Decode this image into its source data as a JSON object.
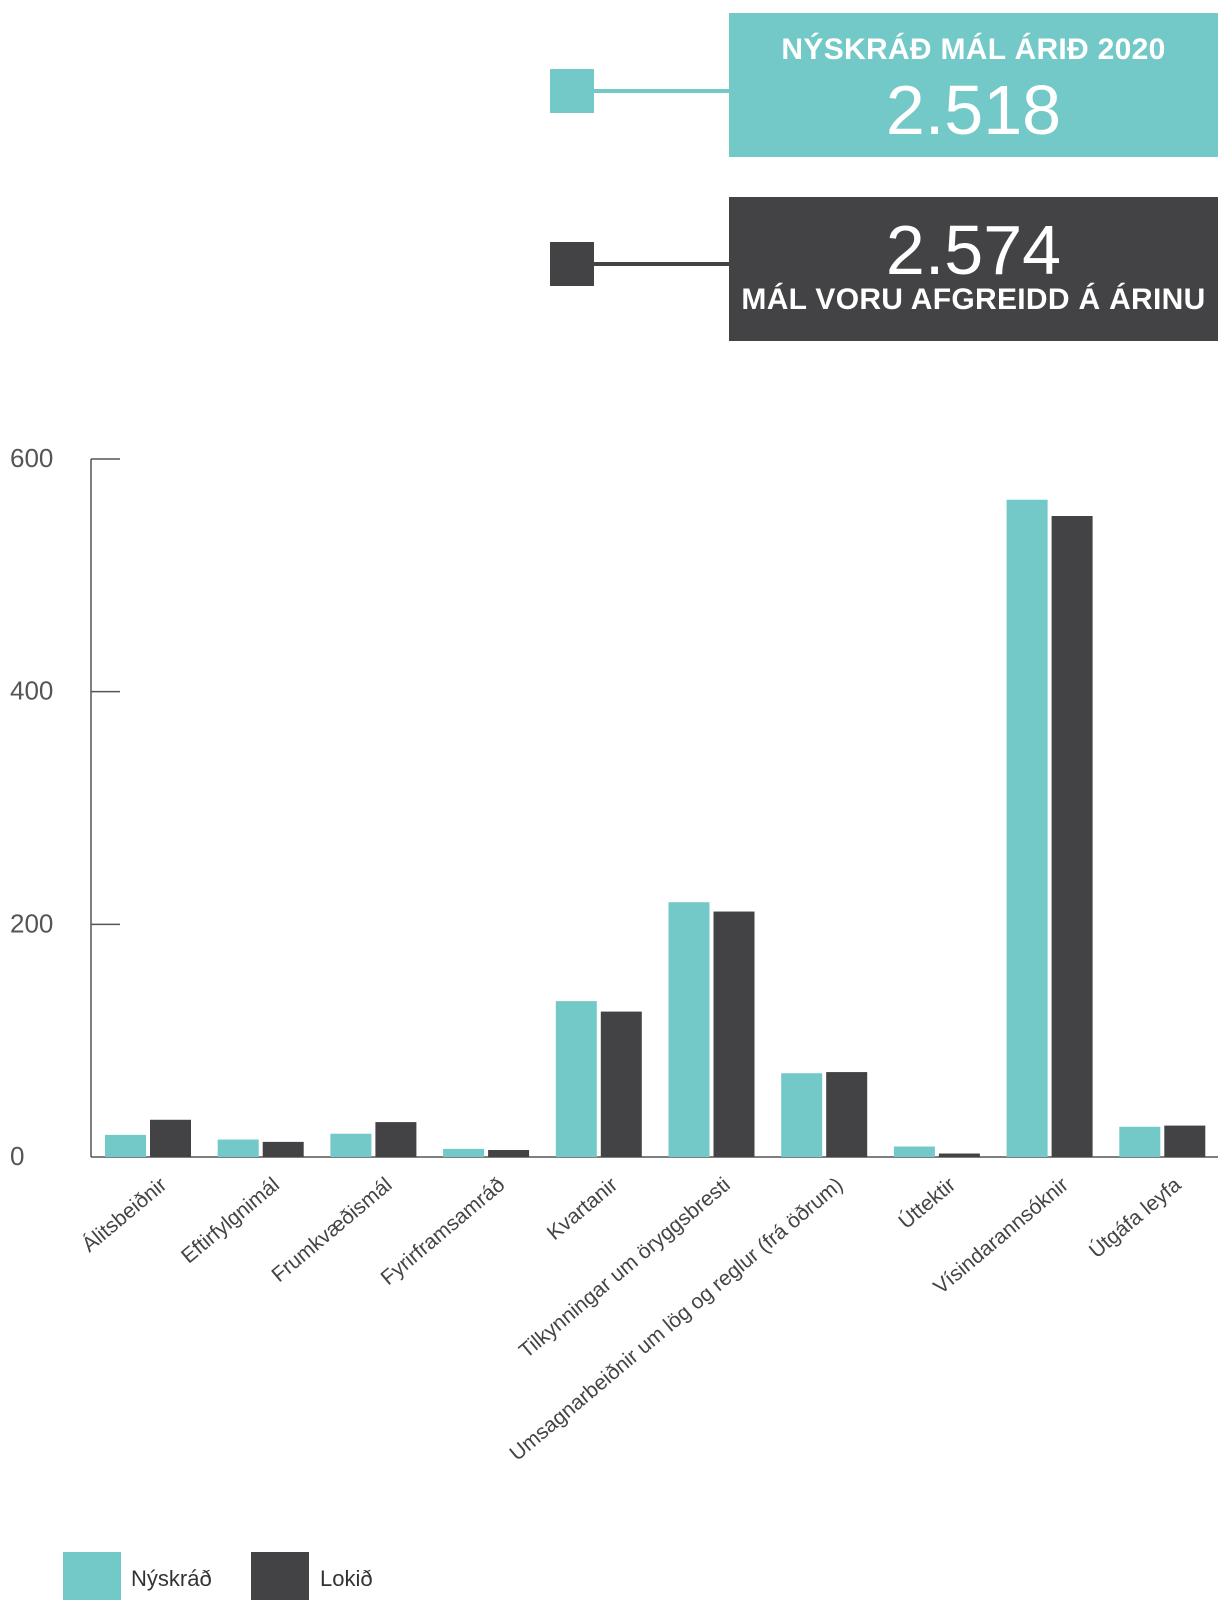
{
  "callouts": {
    "new_cases": {
      "heading": "NÝSKRÁÐ MÁL ÁRIÐ 2020",
      "value": "2.518",
      "color": "#72c9c8"
    },
    "closed_cases": {
      "value": "2.574",
      "heading": "MÁL VORU AFGREIDD Á ÁRINU",
      "color": "#434345"
    }
  },
  "chart_data": {
    "type": "bar",
    "title": "",
    "xlabel": "",
    "ylabel": "",
    "ylim": [
      0,
      600
    ],
    "yticks": [
      "0",
      "200",
      "400",
      "600"
    ],
    "categories": [
      "Álitsbeiðnir",
      "Eftirfylgnimál",
      "Frumkvæðismál",
      "Fyrirframsamráð",
      "Kvartanir",
      "Tilkynningar um öryggsbresti",
      "Umsagnarbeiðnir um lög og reglur (frá öðrum)",
      "Úttektir",
      "Vísindarannsóknir",
      "Útgáfa leyfa"
    ],
    "series": [
      {
        "name": "Nýskráð",
        "color": "#72c9c8",
        "values": [
          19,
          15,
          20,
          7,
          134,
          219,
          72,
          9,
          565,
          26
        ]
      },
      {
        "name": "Lokið",
        "color": "#434345",
        "values": [
          32,
          13,
          30,
          6,
          125,
          211,
          73,
          3,
          551,
          27
        ]
      }
    ],
    "grid": false,
    "legend_position": "bottom-left"
  }
}
